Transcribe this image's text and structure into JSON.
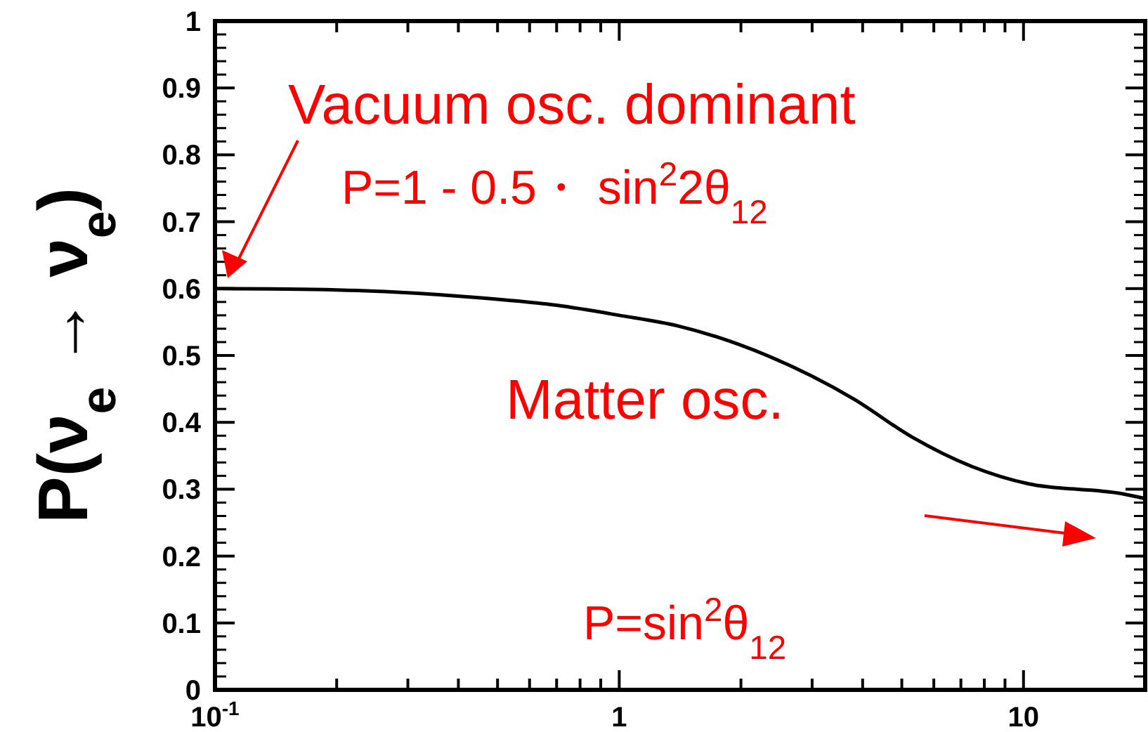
{
  "chart_data": {
    "type": "line",
    "ylabel": "P(ν$_{e}$ → ν$_{e}$)",
    "x": [
      0.1,
      0.2,
      0.437,
      0.7,
      1,
      1.4,
      2.32,
      3.8,
      5.3,
      7.45,
      10.3,
      17.6,
      20
    ],
    "series": [
      {
        "color": "#000000",
        "values": [
          0.6,
          0.598,
          0.587,
          0.575,
          0.56,
          0.544,
          0.5,
          0.435,
          0.378,
          0.334,
          0.308,
          0.293,
          0.286
        ]
      }
    ],
    "xlim": [
      0.1,
      20
    ],
    "log": "x",
    "xticks": [
      {
        "value": 0.1,
        "label": "10$^{-1}$"
      },
      {
        "value": 0.2,
        "label": null
      },
      {
        "value": 0.3,
        "label": null
      },
      {
        "value": 0.4,
        "label": null
      },
      {
        "value": 0.5,
        "label": null
      },
      {
        "value": 0.6,
        "label": null
      },
      {
        "value": 0.7,
        "label": null
      },
      {
        "value": 0.8,
        "label": null
      },
      {
        "value": 0.9,
        "label": null
      },
      1,
      {
        "value": 2,
        "label": null
      },
      {
        "value": 3,
        "label": null
      },
      {
        "value": 4,
        "label": null
      },
      {
        "value": 5,
        "label": null
      },
      {
        "value": 6,
        "label": null
      },
      {
        "value": 7,
        "label": null
      },
      {
        "value": 8,
        "label": null
      },
      {
        "value": 9,
        "label": null
      },
      10
    ],
    "ylim": [
      0,
      1
    ],
    "yticks": [
      0,
      0.1,
      0.2,
      0.3,
      0.4,
      0.5,
      0.6,
      0.7,
      0.8,
      0.9,
      1
    ],
    "grid": false,
    "marker": "none",
    "line_style": "solid",
    "annotations": [
      "Vacuum osc. dominant",
      "P=1 - 0.5・ sin$^{2}$2θ$_{12}$",
      "Matter osc.",
      "P=sin$^{2}$θ$_{12}$"
    ]
  }
}
